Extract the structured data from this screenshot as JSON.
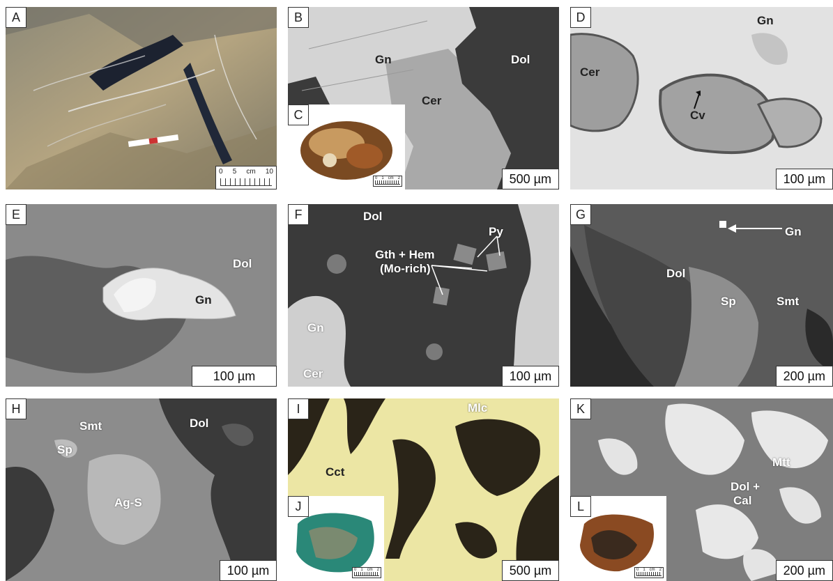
{
  "panels": {
    "A": {
      "letter": "A",
      "ruler": {
        "n0": "0",
        "n5": "5",
        "unit": "cm",
        "n10": "10"
      }
    },
    "B": {
      "letter": "B",
      "scale": "500 µm",
      "labels": {
        "gn": "Gn",
        "dol": "Dol",
        "cer": "Cer"
      }
    },
    "C": {
      "letter": "C",
      "ruler": {
        "n0": "0",
        "n1": "1",
        "unit": "cm",
        "n2": "2"
      }
    },
    "D": {
      "letter": "D",
      "scale": "100 µm",
      "labels": {
        "gn": "Gn",
        "cer": "Cer",
        "cv": "Cv"
      }
    },
    "E": {
      "letter": "E",
      "scale": "100 µm",
      "labels": {
        "dol": "Dol",
        "gn": "Gn"
      }
    },
    "F": {
      "letter": "F",
      "scale": "100 µm",
      "labels": {
        "dol": "Dol",
        "py": "Py",
        "gth": "Gth + Hem",
        "mo": "(Mo-rich)",
        "gn": "Gn",
        "cer": "Cer"
      }
    },
    "G": {
      "letter": "G",
      "scale": "200 µm",
      "labels": {
        "gn": "Gn",
        "dol": "Dol",
        "sp": "Sp",
        "smt": "Smt"
      }
    },
    "H": {
      "letter": "H",
      "scale": "100 µm",
      "labels": {
        "smt": "Smt",
        "dol": "Dol",
        "sp": "Sp",
        "ags": "Ag-S"
      }
    },
    "I": {
      "letter": "I",
      "scale": "500 µm",
      "labels": {
        "mlc": "Mlc",
        "cct": "Cct"
      }
    },
    "J": {
      "letter": "J",
      "ruler": {
        "n0": "0",
        "n1": "1",
        "unit": "cm",
        "n2": "2"
      }
    },
    "K": {
      "letter": "K",
      "scale": "200 µm",
      "labels": {
        "mtt": "Mtt",
        "dol": "Dol +",
        "cal": "Cal"
      }
    },
    "L": {
      "letter": "L",
      "ruler": {
        "n0": "0",
        "n1": "1",
        "unit": "cm",
        "n2": "2"
      }
    }
  },
  "colors": {
    "outcrop": "#9c9070",
    "gn_bse": "#d8d8d8",
    "dol_bse": "#3a3a3a",
    "cer_bse": "#a8a8a8",
    "reflected_yellow": "#f0eaa8",
    "reflected_dark": "#2a2418"
  }
}
